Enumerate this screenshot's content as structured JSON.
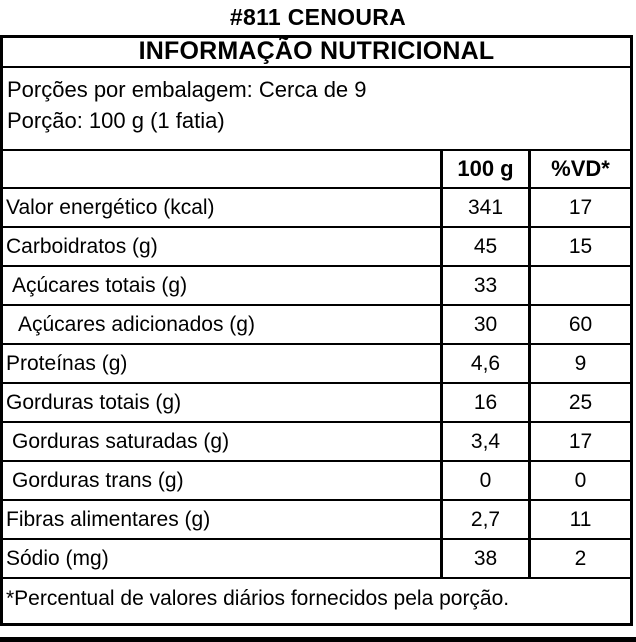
{
  "page_title": "#811 CENOURA",
  "colors": {
    "text": "#000000",
    "background": "#ffffff",
    "border": "#000000"
  },
  "table": {
    "header": "INFORMAÇÃO NUTRICIONAL",
    "servings_per_package": "Porções por embalagem: Cerca de 9",
    "serving_size": "Porção: 100 g (1 fatia)",
    "columns": {
      "amount": "100 g",
      "dv": "%VD*"
    },
    "rows": [
      {
        "label": "Valor energético (kcal)",
        "amount": "341",
        "dv": "17"
      },
      {
        "label": "Carboidratos (g)",
        "amount": "45",
        "dv": "15"
      },
      {
        "label": "Açúcares totais (g)",
        "amount": "33",
        "dv": ""
      },
      {
        "label": "Açúcares adicionados (g)",
        "amount": "30",
        "dv": "60"
      },
      {
        "label": "Proteínas (g)",
        "amount": "4,6",
        "dv": "9"
      },
      {
        "label": "Gorduras totais (g)",
        "amount": "16",
        "dv": "25"
      },
      {
        "label": "Gorduras saturadas (g)",
        "amount": "3,4",
        "dv": "17"
      },
      {
        "label": "Gorduras trans (g)",
        "amount": "0",
        "dv": "0"
      },
      {
        "label": "Fibras alimentares (g)",
        "amount": "2,7",
        "dv": "11"
      },
      {
        "label": "Sódio (mg)",
        "amount": "38",
        "dv": "2"
      }
    ],
    "footnote": "*Percentual de valores diários fornecidos pela porção."
  }
}
